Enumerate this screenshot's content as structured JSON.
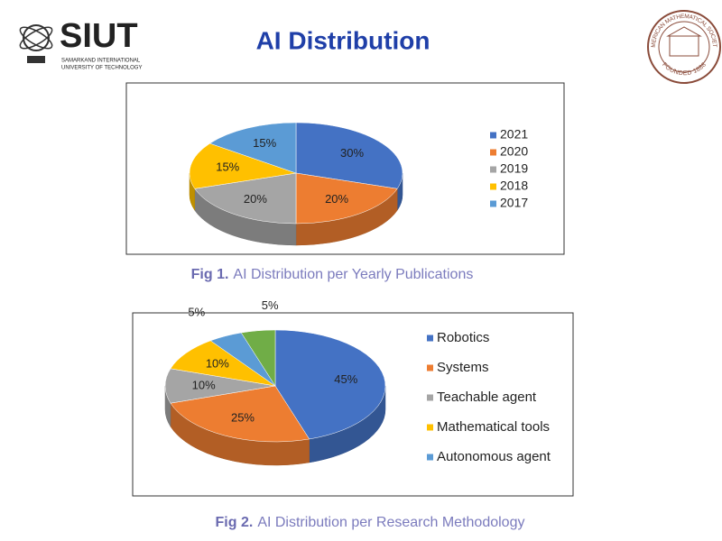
{
  "header": {
    "logo_title": "SIUT",
    "logo_subtitle_1": "SAMARKAND INTERNATIONAL",
    "logo_subtitle_2": "UNIVERSITY OF TECHNOLOGY",
    "title": "AI Distribution",
    "seal_top": "AMERICAN MATHEMATICAL SOCIETY",
    "seal_bottom": "FOUNDED 1888"
  },
  "chart_data": [
    {
      "type": "pie",
      "caption_label": "Fig 1.",
      "caption": "AI Distribution per Yearly Publications",
      "categories": [
        "2021",
        "2020",
        "2019",
        "2018",
        "2017"
      ],
      "values": [
        30,
        20,
        20,
        15,
        15
      ],
      "value_labels": [
        "30%",
        "20%",
        "20%",
        "15%",
        "15%"
      ],
      "colors": [
        "#4472c4",
        "#ed7d31",
        "#a5a5a5",
        "#ffc000",
        "#5b9bd5"
      ],
      "legend": "right"
    },
    {
      "type": "pie",
      "caption_label": "Fig 2.",
      "caption": "AI Distribution per Research Methodology",
      "categories": [
        "Robotics",
        "Systems",
        "Teachable agent",
        "Mathematical tools",
        "Autonomous agent",
        null
      ],
      "values": [
        45,
        25,
        10,
        10,
        5,
        5
      ],
      "value_labels": [
        "45%",
        "25%",
        "10%",
        "10%",
        "5%",
        "5%"
      ],
      "colors": [
        "#4472c4",
        "#ed7d31",
        "#a5a5a5",
        "#ffc000",
        "#5b9bd5",
        "#70ad47"
      ],
      "legend": "right"
    }
  ]
}
